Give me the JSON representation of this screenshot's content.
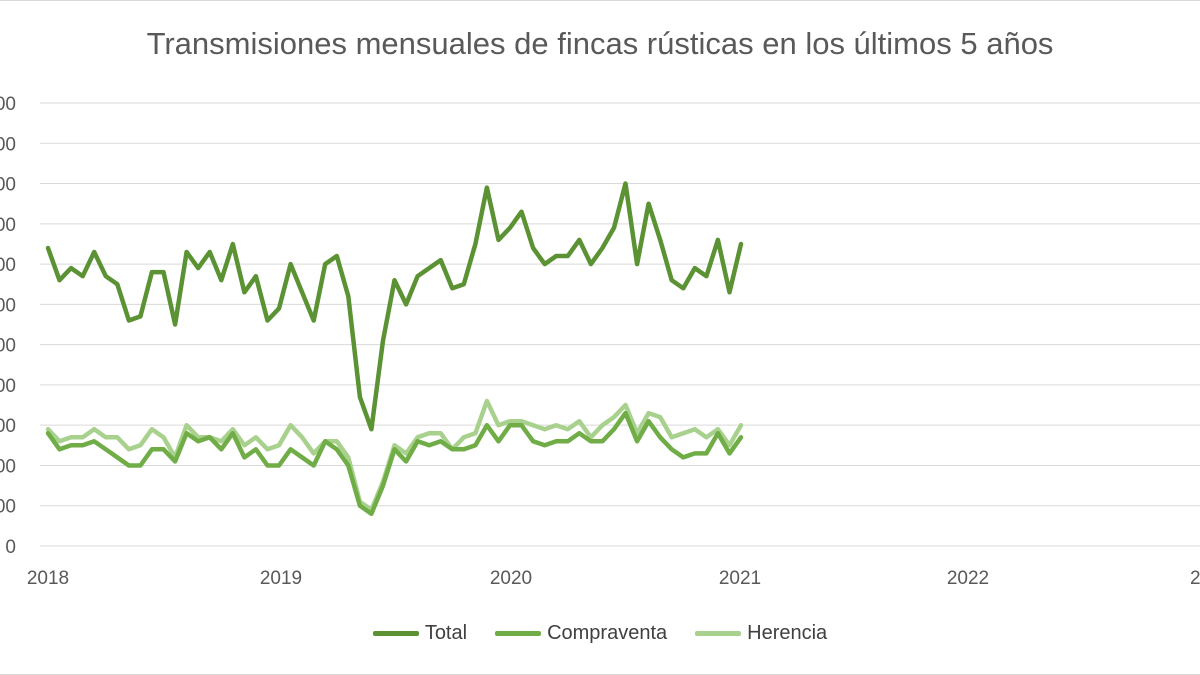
{
  "chart_data": {
    "type": "line",
    "title": "Transmisiones mensuales de fincas rústicas en los últimos 5 años",
    "xlabel": "",
    "ylabel": "",
    "x_tick_labels": [
      "2018",
      "2019",
      "2020",
      "2021",
      "2022",
      "20"
    ],
    "y_tick_labels": [
      "0",
      "00",
      "00",
      "00",
      "00",
      "00",
      "00",
      "00",
      "00",
      "00",
      "00",
      "00"
    ],
    "ylim": [
      0,
      11
    ],
    "grid": true,
    "legend_position": "bottom",
    "series": [
      {
        "name": "Total",
        "color": "#5b9234",
        "values": [
          7.4,
          6.6,
          6.9,
          6.7,
          7.3,
          6.7,
          6.5,
          5.6,
          5.7,
          6.8,
          6.8,
          5.5,
          7.3,
          6.9,
          7.3,
          6.6,
          7.5,
          6.3,
          6.7,
          5.6,
          5.9,
          7.0,
          6.3,
          5.6,
          7.0,
          7.2,
          6.2,
          3.7,
          2.9,
          5.1,
          6.6,
          6.0,
          6.7,
          6.9,
          7.1,
          6.4,
          6.5,
          7.5,
          8.9,
          7.6,
          7.9,
          8.3,
          7.4,
          7.0,
          7.2,
          7.2,
          7.6,
          7.0,
          7.4,
          7.9,
          9.0,
          7.0,
          8.5,
          7.6,
          6.6,
          6.4,
          6.9,
          6.7,
          7.6,
          6.3,
          7.5
        ]
      },
      {
        "name": "Compraventa",
        "color": "#70ad47",
        "values": [
          2.8,
          2.4,
          2.5,
          2.5,
          2.6,
          2.4,
          2.2,
          2.0,
          2.0,
          2.4,
          2.4,
          2.1,
          2.8,
          2.6,
          2.7,
          2.4,
          2.8,
          2.2,
          2.4,
          2.0,
          2.0,
          2.4,
          2.2,
          2.0,
          2.6,
          2.4,
          2.0,
          1.0,
          0.8,
          1.5,
          2.4,
          2.1,
          2.6,
          2.5,
          2.6,
          2.4,
          2.4,
          2.5,
          3.0,
          2.6,
          3.0,
          3.0,
          2.6,
          2.5,
          2.6,
          2.6,
          2.8,
          2.6,
          2.6,
          2.9,
          3.3,
          2.6,
          3.1,
          2.7,
          2.4,
          2.2,
          2.3,
          2.3,
          2.8,
          2.3,
          2.7
        ]
      },
      {
        "name": "Herencia",
        "color": "#a9d18e",
        "values": [
          2.9,
          2.6,
          2.7,
          2.7,
          2.9,
          2.7,
          2.7,
          2.4,
          2.5,
          2.9,
          2.7,
          2.2,
          3.0,
          2.7,
          2.7,
          2.6,
          2.9,
          2.5,
          2.7,
          2.4,
          2.5,
          3.0,
          2.7,
          2.3,
          2.6,
          2.6,
          2.2,
          1.1,
          0.9,
          1.6,
          2.5,
          2.3,
          2.7,
          2.8,
          2.8,
          2.4,
          2.7,
          2.8,
          3.6,
          3.0,
          3.1,
          3.1,
          3.0,
          2.9,
          3.0,
          2.9,
          3.1,
          2.7,
          3.0,
          3.2,
          3.5,
          2.8,
          3.3,
          3.2,
          2.7,
          2.8,
          2.9,
          2.7,
          2.9,
          2.5,
          3.0
        ]
      }
    ]
  }
}
